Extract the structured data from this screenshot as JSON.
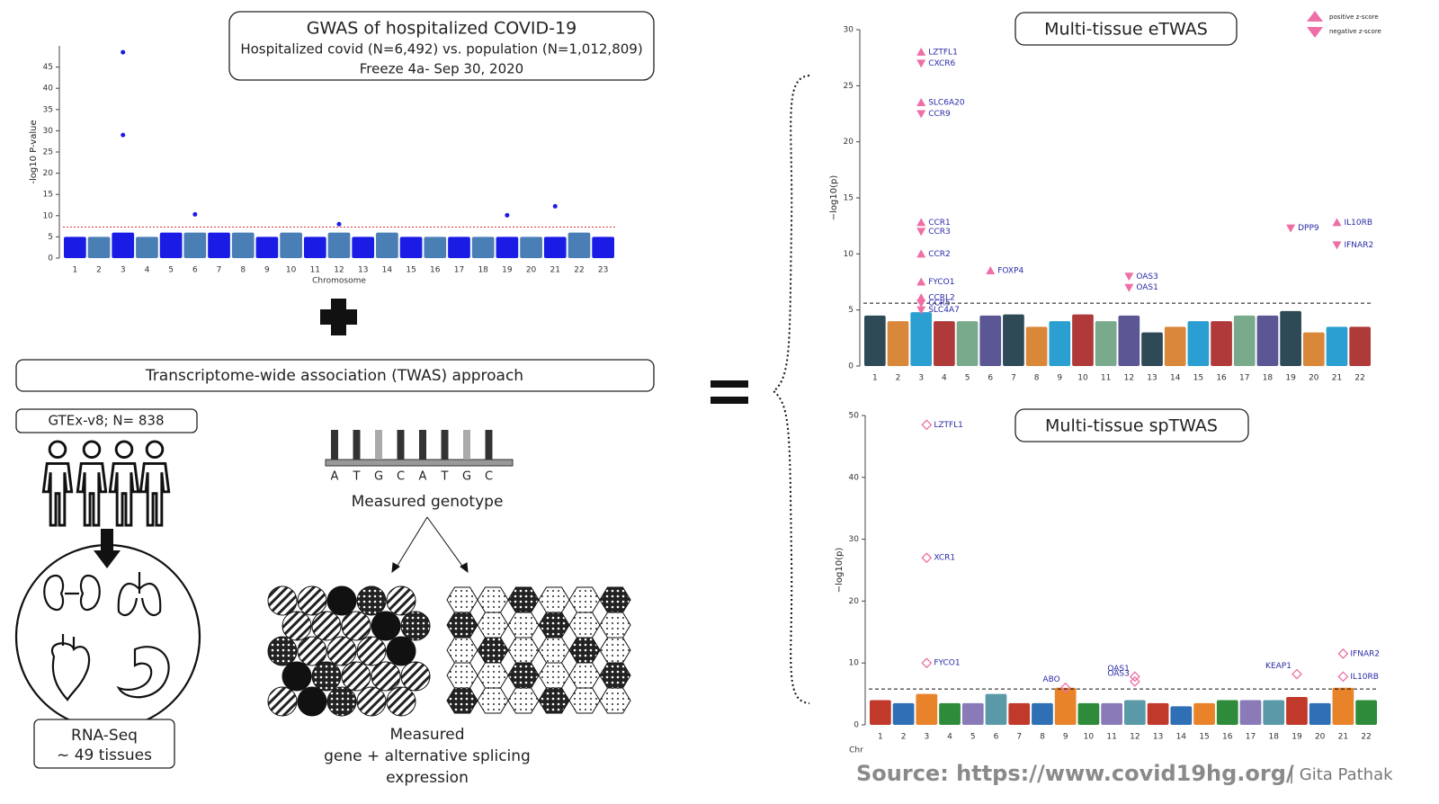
{
  "gwas_panel": {
    "title": "GWAS of hospitalized COVID-19",
    "subtitle": "Hospitalized covid (N=6,492) vs. population (N=1,012,809)",
    "freeze": "Freeze 4a- Sep 30, 2020",
    "chart": {
      "type": "manhattan",
      "ylabel": "-log10 P-value",
      "xlabel": "Chromosome",
      "categories": [
        "1",
        "2",
        "3",
        "4",
        "5",
        "6",
        "7",
        "8",
        "9",
        "10",
        "11",
        "12",
        "13",
        "14",
        "15",
        "16",
        "17",
        "18",
        "19",
        "20",
        "21",
        "22",
        "23"
      ],
      "ylim": [
        0,
        50
      ],
      "yticks": [
        0,
        5,
        10,
        15,
        20,
        25,
        30,
        35,
        40,
        45
      ],
      "threshold": 7.3,
      "colors": [
        "#1b1be6",
        "#4a7fb5"
      ],
      "marker": "dot",
      "hit_color": "#1b1be6",
      "peaks": [
        5,
        5,
        6,
        5,
        6,
        6,
        6,
        6,
        5,
        6,
        5,
        6,
        5,
        6,
        5,
        5,
        5,
        5,
        5,
        5,
        5,
        6,
        5
      ],
      "hits": [
        {
          "chrom": "3",
          "value": 48.5
        },
        {
          "chrom": "3",
          "value": 29
        },
        {
          "chrom": "6",
          "value": 10.3
        },
        {
          "chrom": "12",
          "value": 8
        },
        {
          "chrom": "19",
          "value": 10.1
        },
        {
          "chrom": "21",
          "value": 12.2
        }
      ]
    }
  },
  "twas_title": "Transcriptome-wide association (TWAS) approach",
  "gtex_label": "GTEx-v8; N= 838",
  "rnaseq": [
    "RNA-Seq",
    "~ 49 tissues"
  ],
  "genotype_letters": [
    "A",
    "T",
    "G",
    "C",
    "A",
    "T",
    "G",
    "C"
  ],
  "genotype_label": "Measured genotype",
  "expression_label": [
    "Measured",
    "gene + alternative splicing",
    "expression"
  ],
  "etwas": {
    "type": "manhattan",
    "title": "Multi-tissue eTWAS",
    "ylabel": "−log10(p)",
    "categories": [
      "1",
      "2",
      "3",
      "4",
      "5",
      "6",
      "7",
      "8",
      "9",
      "10",
      "11",
      "12",
      "13",
      "14",
      "15",
      "16",
      "17",
      "18",
      "19",
      "20",
      "21",
      "22"
    ],
    "ylim": [
      0,
      30
    ],
    "yticks": [
      0,
      5,
      10,
      15,
      20,
      25,
      30
    ],
    "threshold": 5.6,
    "colors": [
      "#2e4a57",
      "#d9883a",
      "#2b9fd1",
      "#b03a3a",
      "#7aaa8c",
      "#5b5694"
    ],
    "marker": "triangle",
    "hit_color": "#ee6fa5",
    "legend": {
      "positive": "positive z-score",
      "negative": "negative z-score"
    },
    "peaks": [
      4.5,
      4,
      4.8,
      4,
      4,
      4.5,
      4.6,
      3.5,
      4,
      4.6,
      4,
      4.5,
      3,
      3.5,
      4,
      4,
      4.5,
      4.5,
      4.9,
      3,
      3.5,
      3.5
    ],
    "hits": [
      {
        "name": "LZTFL1",
        "chrom": "3",
        "value": 28,
        "z": "positive"
      },
      {
        "name": "CXCR6",
        "chrom": "3",
        "value": 27,
        "z": "negative"
      },
      {
        "name": "SLC6A20",
        "chrom": "3",
        "value": 23.5,
        "z": "positive"
      },
      {
        "name": "CCR9",
        "chrom": "3",
        "value": 22.5,
        "z": "negative"
      },
      {
        "name": "CCR1",
        "chrom": "3",
        "value": 12.8,
        "z": "positive"
      },
      {
        "name": "CCR3",
        "chrom": "3",
        "value": 12,
        "z": "negative"
      },
      {
        "name": "CCR2",
        "chrom": "3",
        "value": 10,
        "z": "positive"
      },
      {
        "name": "FYCO1",
        "chrom": "3",
        "value": 7.5,
        "z": "positive"
      },
      {
        "name": "CCRL2",
        "chrom": "3",
        "value": 6.1,
        "z": "positive"
      },
      {
        "name": "CCR5",
        "chrom": "3",
        "value": 5.6,
        "z": "negative"
      },
      {
        "name": "SLC4A7",
        "chrom": "3",
        "value": 5,
        "z": "negative"
      },
      {
        "name": "FOXP4",
        "chrom": "6",
        "value": 8.5,
        "z": "positive"
      },
      {
        "name": "OAS3",
        "chrom": "12",
        "value": 8,
        "z": "negative"
      },
      {
        "name": "OAS1",
        "chrom": "12",
        "value": 7,
        "z": "negative"
      },
      {
        "name": "DPP9",
        "chrom": "19",
        "value": 12.3,
        "z": "negative"
      },
      {
        "name": "IL10RB",
        "chrom": "21",
        "value": 12.8,
        "z": "positive"
      },
      {
        "name": "IFNAR2",
        "chrom": "21",
        "value": 10.8,
        "z": "negative"
      }
    ]
  },
  "sptwas": {
    "type": "manhattan",
    "title": "Multi-tissue spTWAS",
    "ylabel": "−log10(p)",
    "xlabel": "Chr",
    "categories": [
      "1",
      "2",
      "3",
      "4",
      "5",
      "6",
      "7",
      "8",
      "9",
      "10",
      "11",
      "12",
      "13",
      "14",
      "15",
      "16",
      "17",
      "18",
      "19",
      "20",
      "21",
      "22"
    ],
    "ylim": [
      0,
      50
    ],
    "yticks": [
      0,
      10,
      20,
      30,
      40,
      50
    ],
    "threshold": 5.8,
    "colors": [
      "#c0392b",
      "#2e6fb5",
      "#e8832a",
      "#2e8b3a",
      "#8a7ab8",
      "#5a9aa8"
    ],
    "marker": "diamond",
    "hit_color": "#ee6fa5",
    "peaks": [
      4,
      3.5,
      5,
      3.5,
      3.5,
      5,
      3.5,
      3.5,
      6,
      3.5,
      3.5,
      4,
      3.5,
      3,
      3.5,
      4,
      4,
      4,
      4.5,
      3.5,
      6,
      4
    ],
    "hits": [
      {
        "name": "LZTFL1",
        "chrom": "3",
        "value": 48.5
      },
      {
        "name": "XCR1",
        "chrom": "3",
        "value": 27
      },
      {
        "name": "FYCO1",
        "chrom": "3",
        "value": 10
      },
      {
        "name": "ABO",
        "chrom": "9",
        "value": 6
      },
      {
        "name": "OAS1",
        "chrom": "12",
        "value": 7.8
      },
      {
        "name": "OAS3",
        "chrom": "12",
        "value": 7
      },
      {
        "name": "KEAP1",
        "chrom": "19",
        "value": 8.2
      },
      {
        "name": "IFNAR2",
        "chrom": "21",
        "value": 11.5
      },
      {
        "name": "IL10RB",
        "chrom": "21",
        "value": 7.8
      }
    ]
  },
  "source": "Source: https://www.covid19hg.org/",
  "author": "| Gita Pathak"
}
